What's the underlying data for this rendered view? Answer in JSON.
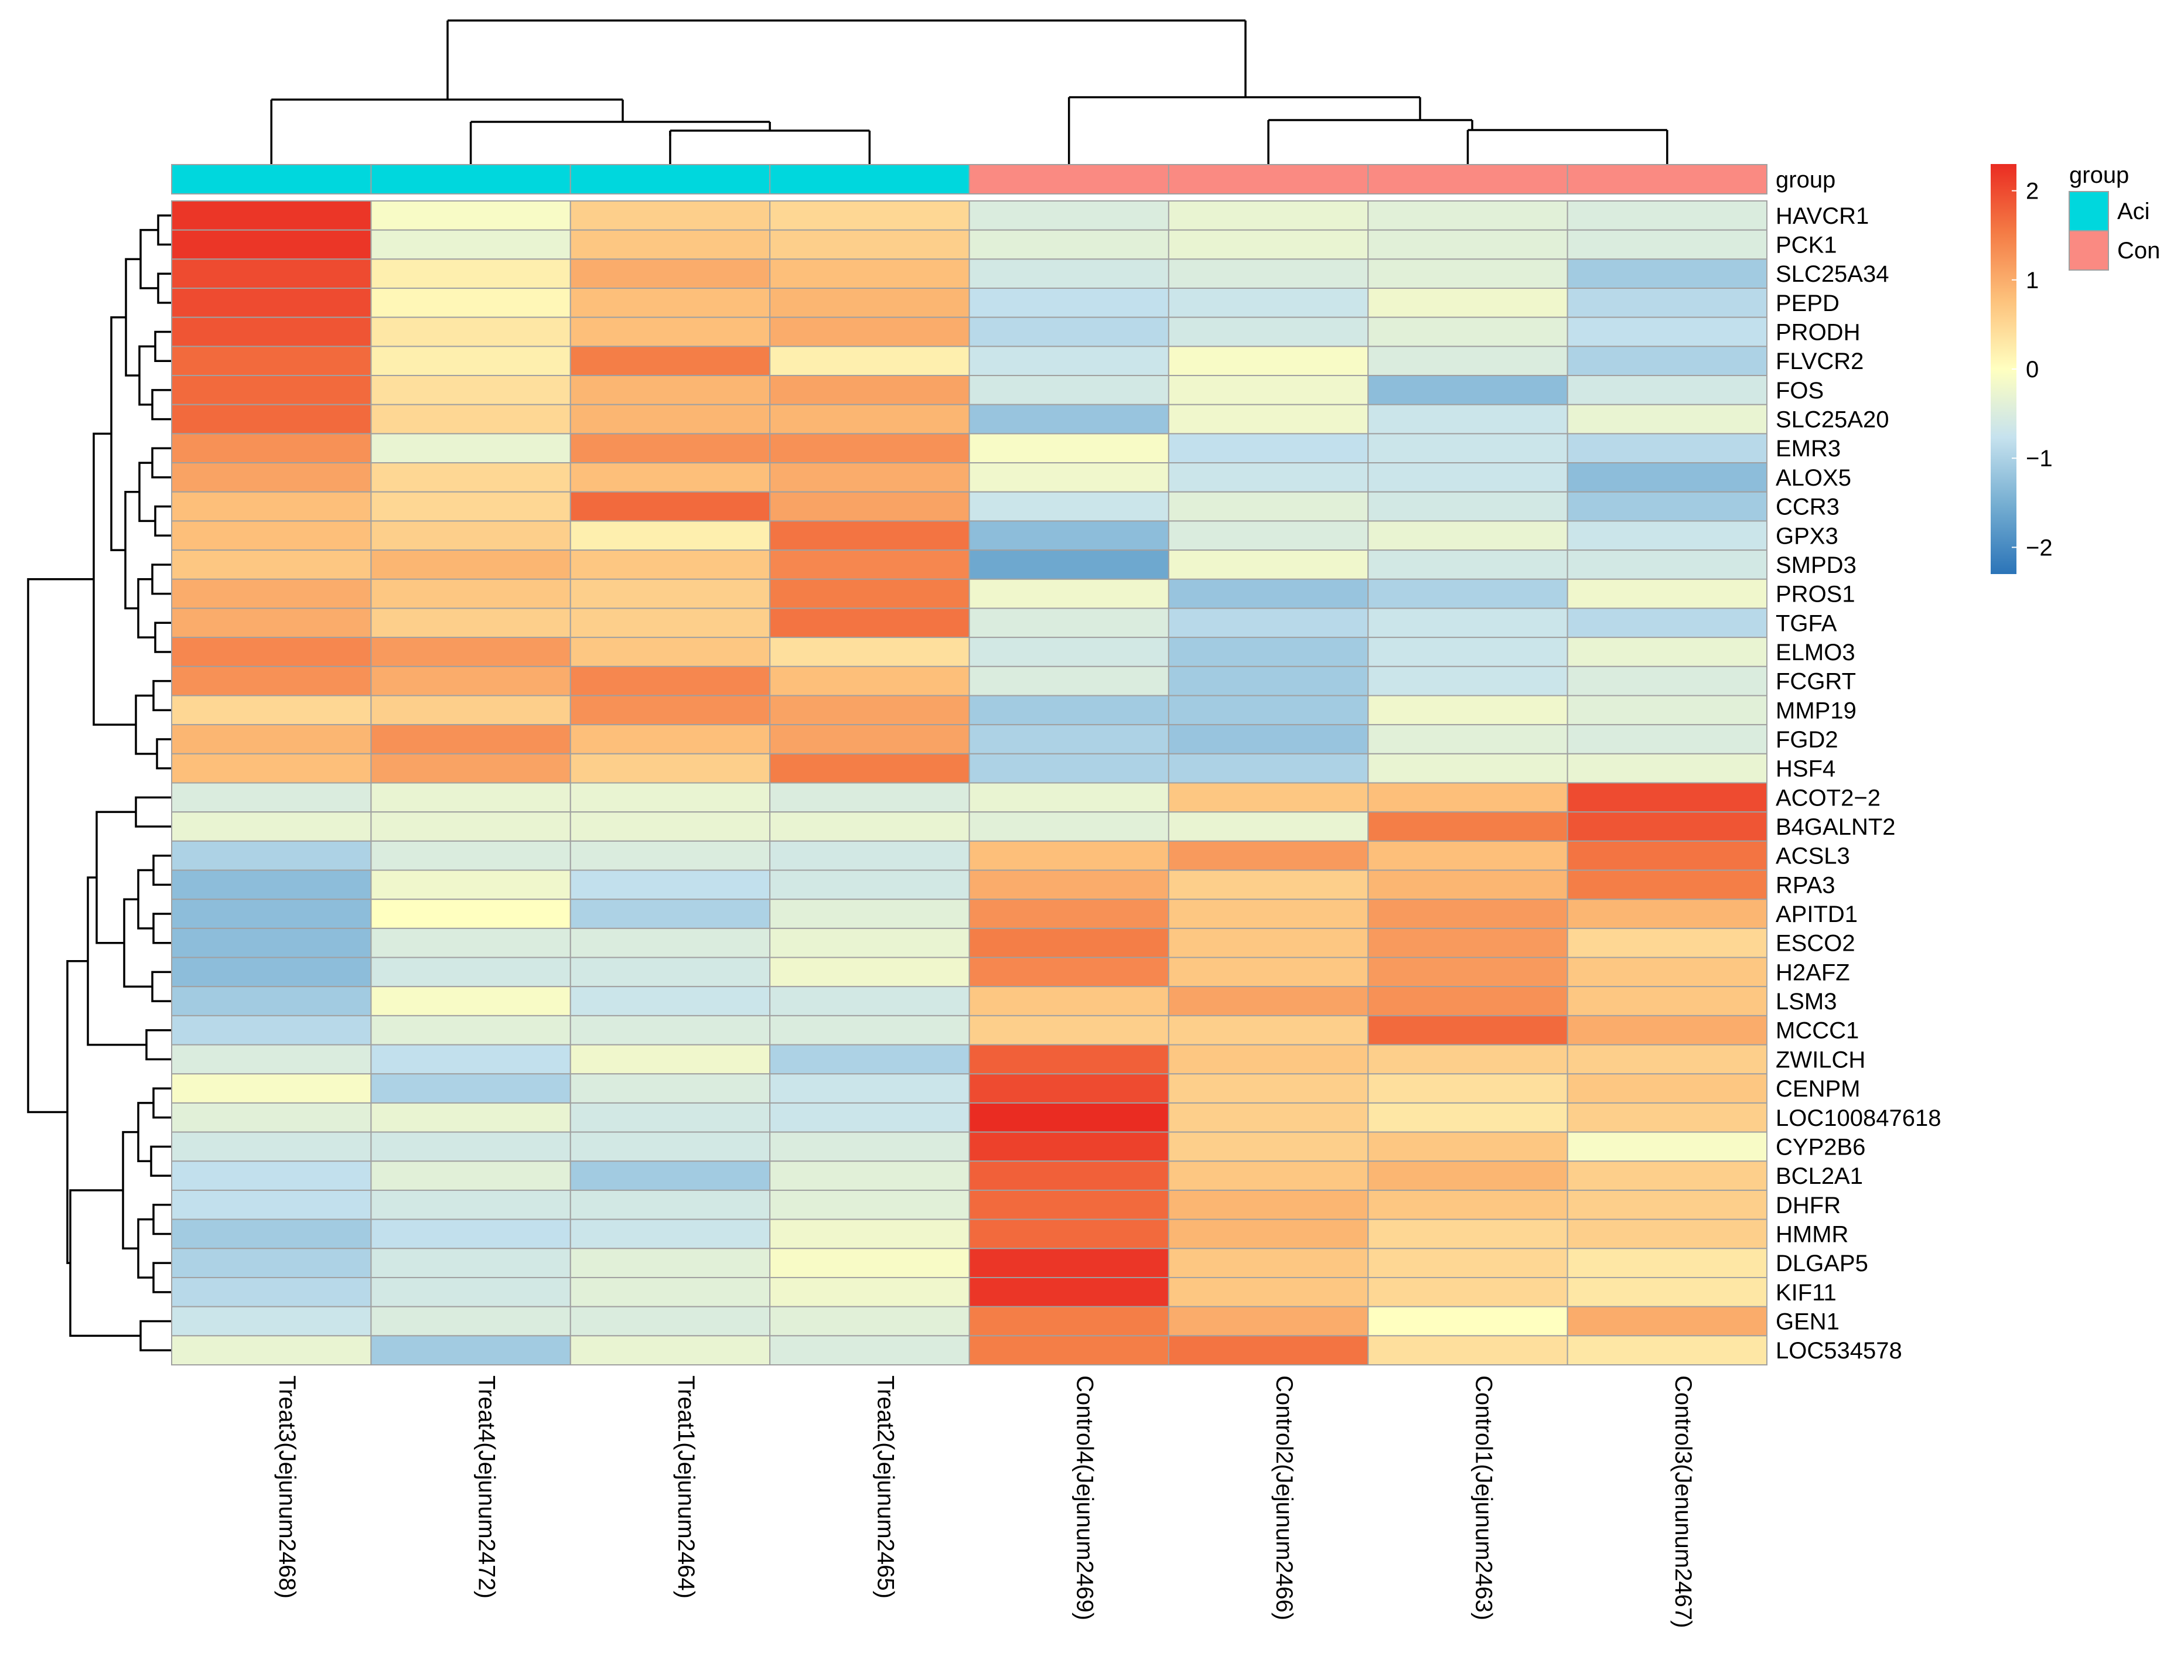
{
  "chart_data": {
    "type": "heatmap",
    "samples": [
      "Treat3(Jejunum2468)",
      "Treat4(Jejunum2472)",
      "Treat1(Jejunum2464)",
      "Treat2(Jejunum2465)",
      "Control4(Jejunum2469)",
      "Control2(Jejunum2466)",
      "Control1(Jejunum2463)",
      "Control3(Jenunum2467)"
    ],
    "sample_groups": [
      "Aci",
      "Aci",
      "Aci",
      "Aci",
      "Con",
      "Con",
      "Con",
      "Con"
    ],
    "genes": [
      "HAVCR1",
      "PCK1",
      "SLC25A34",
      "PEPD",
      "PRODH",
      "FLVCR2",
      "FOS",
      "SLC25A20",
      "EMR3",
      "ALOX5",
      "CCR3",
      "GPX3",
      "SMPD3",
      "PROS1",
      "TGFA",
      "ELMO3",
      "FCGRT",
      "MMP19",
      "FGD2",
      "HSF4",
      "ACOT2−2",
      "B4GALNT2",
      "ACSL3",
      "RPA3",
      "APITD1",
      "ESCO2",
      "H2AFZ",
      "LSM3",
      "MCCC1",
      "ZWILCH",
      "CENPM",
      "LOC100847618",
      "CYP2B6",
      "BCL2A1",
      "DHFR",
      "HMMR",
      "DLGAP5",
      "KIF11",
      "GEN1",
      "LOC534578"
    ],
    "values": [
      [
        2.2,
        -0.1,
        0.6,
        0.5,
        -0.5,
        -0.3,
        -0.4,
        -0.5
      ],
      [
        2.2,
        -0.3,
        0.7,
        0.6,
        -0.4,
        -0.3,
        -0.4,
        -0.5
      ],
      [
        2.0,
        0.2,
        1.0,
        0.8,
        -0.6,
        -0.5,
        -0.4,
        -1.1
      ],
      [
        2.0,
        0.1,
        0.8,
        0.9,
        -0.8,
        -0.7,
        -0.2,
        -0.9
      ],
      [
        1.9,
        0.3,
        0.8,
        1.0,
        -0.9,
        -0.6,
        -0.4,
        -0.8
      ],
      [
        1.7,
        0.2,
        1.5,
        0.2,
        -0.7,
        -0.1,
        -0.5,
        -1.0
      ],
      [
        1.7,
        0.4,
        0.9,
        1.1,
        -0.6,
        -0.2,
        -1.3,
        -0.6
      ],
      [
        1.7,
        0.5,
        0.9,
        0.9,
        -1.2,
        -0.2,
        -0.7,
        -0.3
      ],
      [
        1.3,
        -0.3,
        1.3,
        1.3,
        -0.1,
        -0.8,
        -0.7,
        -0.9
      ],
      [
        1.1,
        0.5,
        0.8,
        1.0,
        -0.2,
        -0.7,
        -0.7,
        -1.3
      ],
      [
        0.8,
        0.5,
        1.7,
        1.1,
        -0.7,
        -0.4,
        -0.6,
        -1.1
      ],
      [
        0.8,
        0.6,
        0.2,
        1.6,
        -1.3,
        -0.5,
        -0.3,
        -0.7
      ],
      [
        0.7,
        0.9,
        0.7,
        1.4,
        -1.6,
        -0.2,
        -0.6,
        -0.6
      ],
      [
        1.0,
        0.7,
        0.6,
        1.5,
        -0.2,
        -1.2,
        -1.0,
        -0.2
      ],
      [
        1.0,
        0.6,
        0.6,
        1.6,
        -0.5,
        -0.9,
        -0.7,
        -0.9
      ],
      [
        1.4,
        1.2,
        0.7,
        0.4,
        -0.6,
        -1.1,
        -0.7,
        -0.3
      ],
      [
        1.3,
        1.0,
        1.4,
        0.8,
        -0.5,
        -1.1,
        -0.7,
        -0.5
      ],
      [
        0.5,
        0.6,
        1.3,
        1.1,
        -1.1,
        -1.1,
        -0.2,
        -0.4
      ],
      [
        0.9,
        1.3,
        0.8,
        1.1,
        -1.0,
        -1.2,
        -0.4,
        -0.5
      ],
      [
        0.8,
        1.1,
        0.6,
        1.5,
        -1.0,
        -1.0,
        -0.3,
        -0.3
      ],
      [
        -0.5,
        -0.3,
        -0.3,
        -0.5,
        -0.3,
        0.7,
        0.8,
        2.0
      ],
      [
        -0.3,
        -0.3,
        -0.3,
        -0.3,
        -0.4,
        -0.3,
        1.5,
        1.9
      ],
      [
        -1.0,
        -0.5,
        -0.5,
        -0.6,
        0.8,
        1.2,
        0.8,
        1.6
      ],
      [
        -1.3,
        -0.2,
        -0.8,
        -0.6,
        1.0,
        0.6,
        0.9,
        1.5
      ],
      [
        -1.3,
        0.0,
        -1.0,
        -0.4,
        1.3,
        0.7,
        1.2,
        0.9
      ],
      [
        -1.3,
        -0.5,
        -0.5,
        -0.3,
        1.5,
        0.7,
        1.2,
        0.5
      ],
      [
        -1.3,
        -0.6,
        -0.6,
        -0.2,
        1.4,
        0.7,
        1.2,
        0.7
      ],
      [
        -1.1,
        -0.1,
        -0.7,
        -0.6,
        0.7,
        1.1,
        1.3,
        0.7
      ],
      [
        -0.9,
        -0.4,
        -0.5,
        -0.5,
        0.6,
        0.6,
        1.7,
        1.0
      ],
      [
        -0.5,
        -0.8,
        -0.2,
        -1.0,
        1.8,
        0.7,
        0.6,
        0.6
      ],
      [
        -0.1,
        -1.0,
        -0.5,
        -0.7,
        2.0,
        0.6,
        0.4,
        0.7
      ],
      [
        -0.4,
        -0.3,
        -0.6,
        -0.7,
        2.3,
        0.6,
        0.3,
        0.6
      ],
      [
        -0.6,
        -0.6,
        -0.6,
        -0.5,
        2.1,
        0.6,
        0.7,
        -0.1
      ],
      [
        -0.8,
        -0.4,
        -1.1,
        -0.4,
        1.8,
        0.7,
        0.9,
        0.6
      ],
      [
        -0.8,
        -0.6,
        -0.6,
        -0.4,
        1.7,
        0.9,
        0.7,
        0.6
      ],
      [
        -1.1,
        -0.8,
        -0.7,
        -0.2,
        1.7,
        0.9,
        0.5,
        0.6
      ],
      [
        -1.0,
        -0.6,
        -0.4,
        -0.1,
        2.2,
        0.7,
        0.5,
        0.3
      ],
      [
        -0.9,
        -0.6,
        -0.4,
        -0.2,
        2.2,
        0.7,
        0.5,
        0.3
      ],
      [
        -0.7,
        -0.5,
        -0.5,
        -0.4,
        1.5,
        1.0,
        0.0,
        1.0
      ],
      [
        -0.3,
        -1.1,
        -0.3,
        -0.5,
        1.5,
        1.6,
        0.4,
        0.3
      ]
    ],
    "color_scale": {
      "min": -2.3,
      "max": 2.3,
      "stops": [
        "#2b74b8",
        "#74add1",
        "#c6e2ee",
        "#ffffc0",
        "#fdc27c",
        "#f47b45",
        "#ea2c22"
      ],
      "ticks": [
        "2",
        "1",
        "0",
        "−1",
        "−2"
      ],
      "tick_values": [
        2,
        1,
        0,
        -1,
        -2
      ]
    },
    "annotation": {
      "label": "group",
      "legend_title": "group",
      "levels": [
        {
          "name": "Aci",
          "color": "#00d7dd"
        },
        {
          "name": "Con",
          "color": "#fa8a82"
        }
      ]
    },
    "column_clustering": "hierarchical",
    "row_clustering": "hierarchical"
  }
}
